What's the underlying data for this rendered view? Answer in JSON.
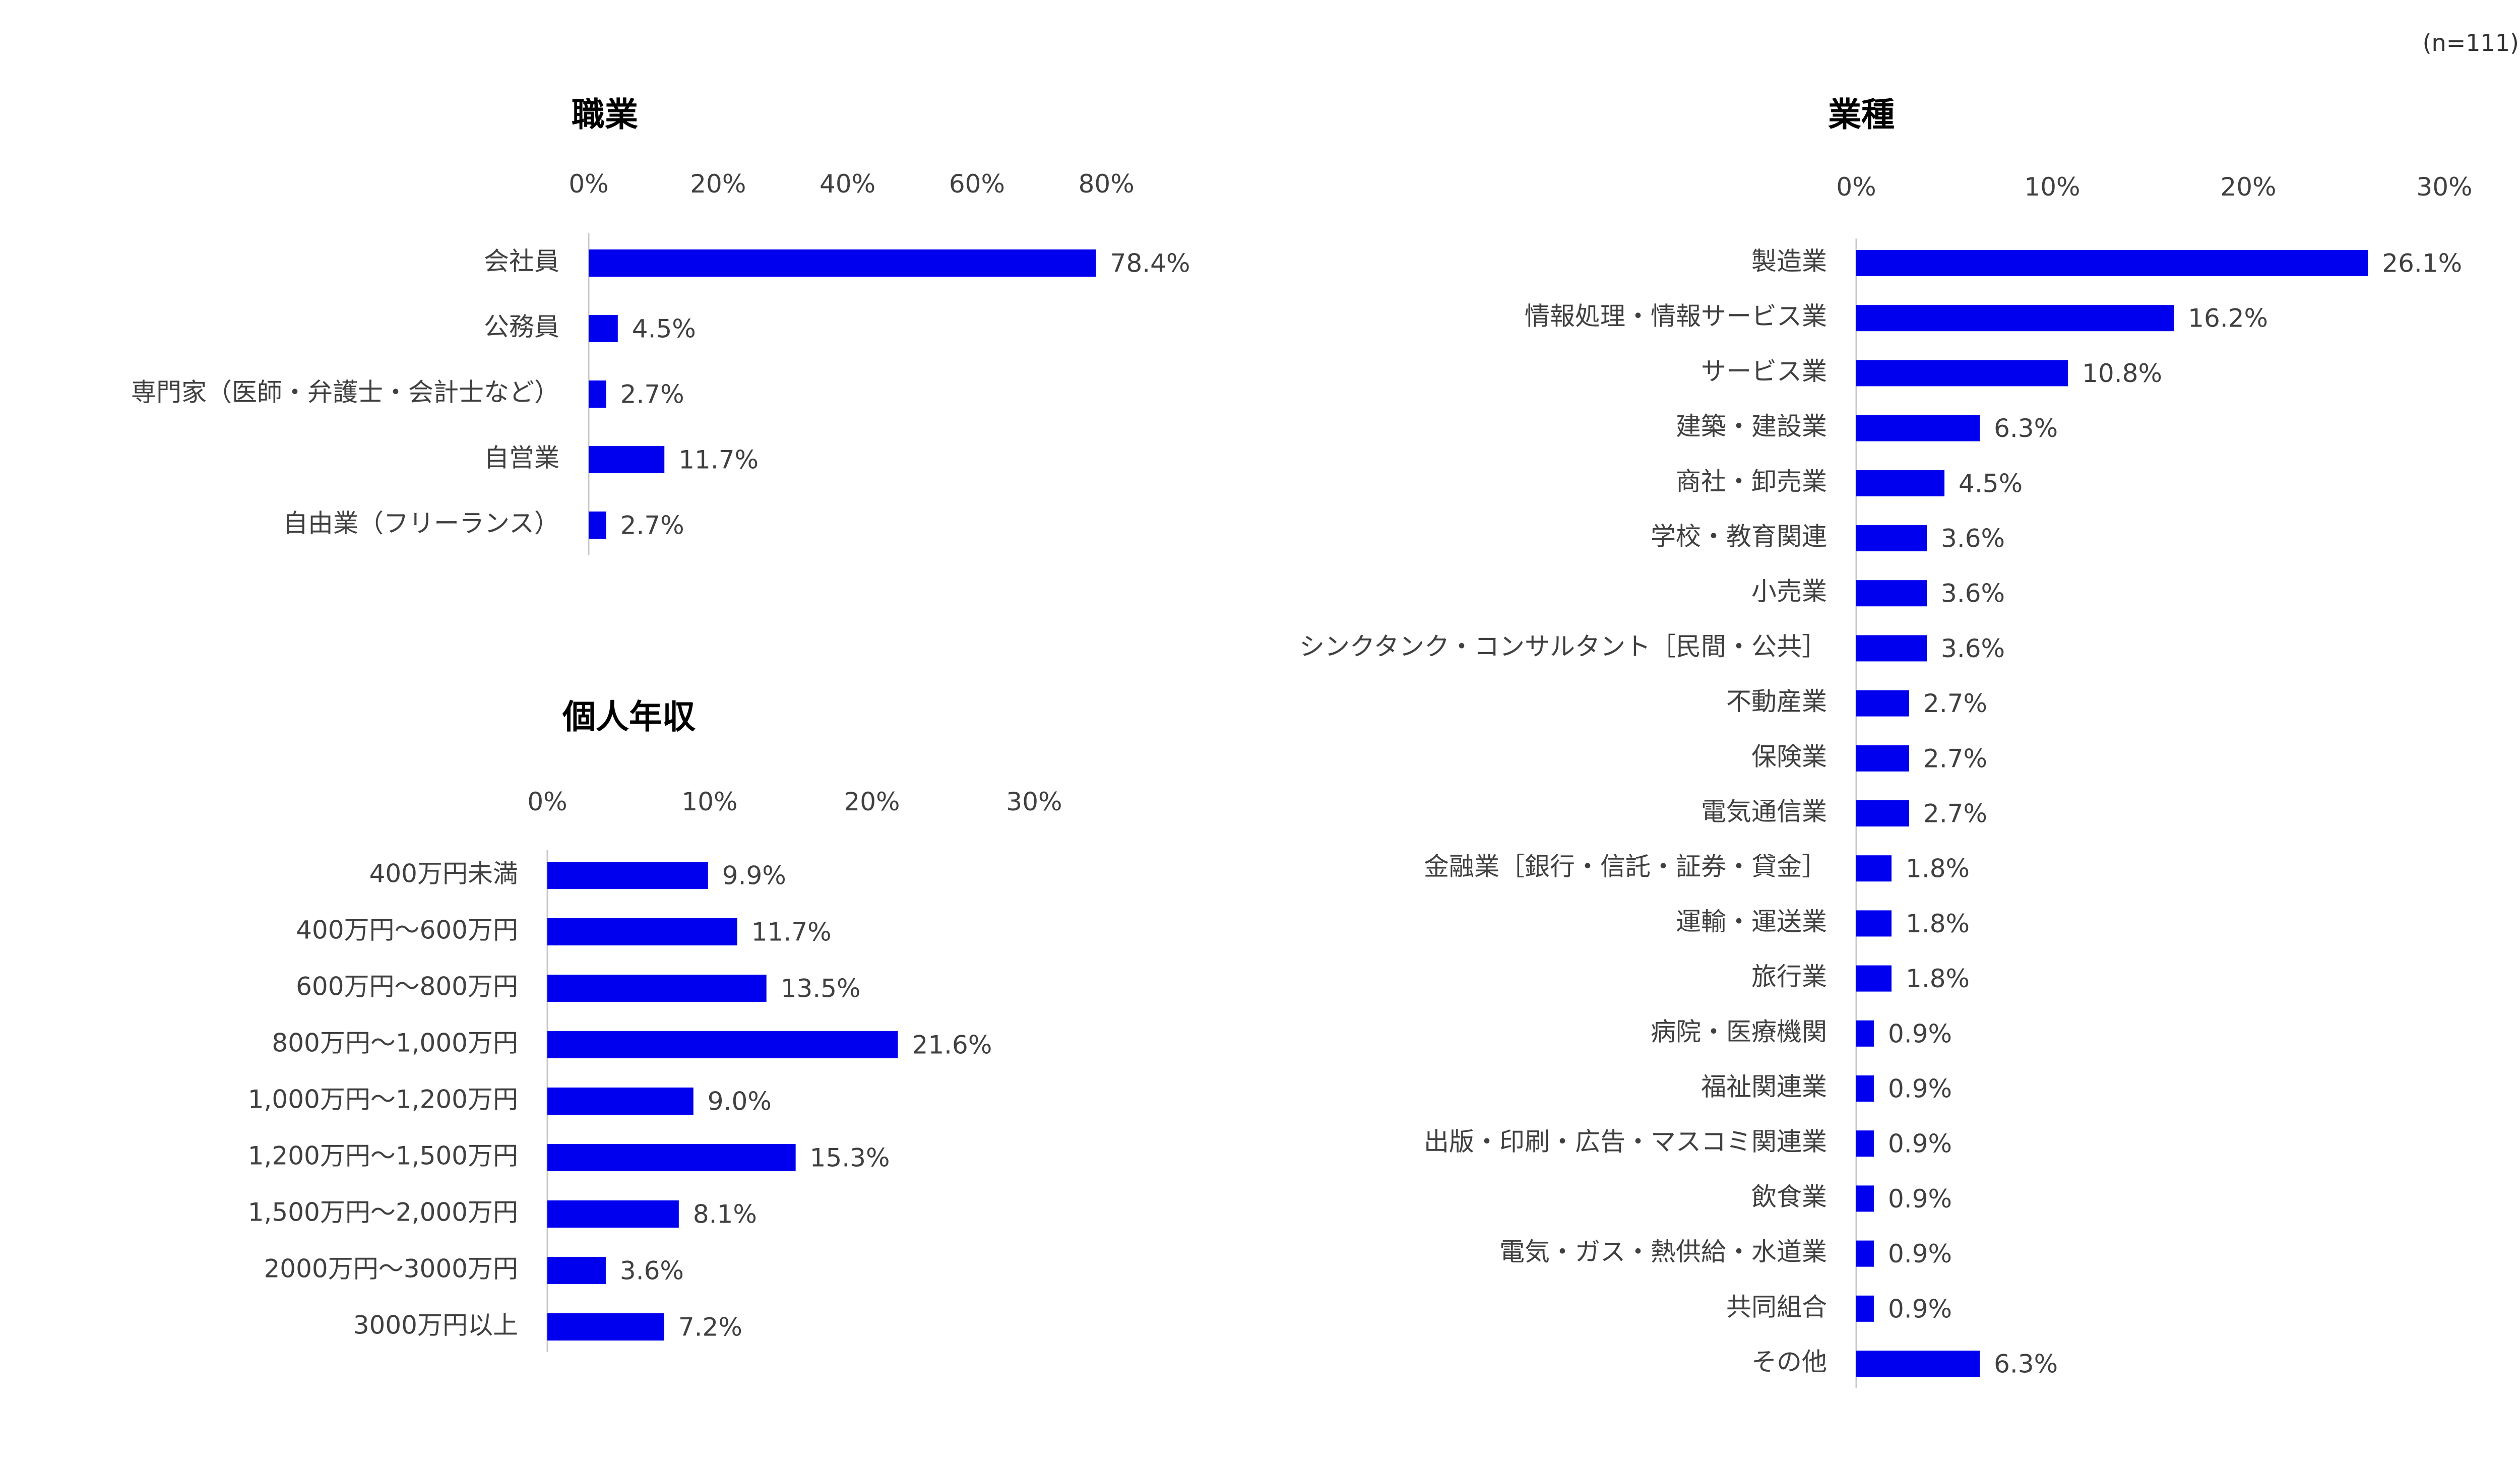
{
  "sample_size": "(n=111)",
  "colors": {
    "bar": "#0000ee"
  },
  "chart_data": [
    {
      "type": "bar",
      "orientation": "horizontal",
      "title": "職業",
      "ticks": [
        "0%",
        "20%",
        "40%",
        "60%",
        "80%"
      ],
      "xlim": [
        0,
        80
      ],
      "categories": [
        "会社員",
        "公務員",
        "専門家（医師・弁護士・会計士など）",
        "自営業",
        "自由業（フリーランス）"
      ],
      "values": [
        78.4,
        4.5,
        2.7,
        11.7,
        2.7
      ],
      "labels": [
        "78.4%",
        "4.5%",
        "2.7%",
        "11.7%",
        "2.7%"
      ]
    },
    {
      "type": "bar",
      "orientation": "horizontal",
      "title": "個人年収",
      "ticks": [
        "0%",
        "10%",
        "20%",
        "30%"
      ],
      "xlim": [
        0,
        30
      ],
      "categories": [
        "400万円未満",
        "400万円～600万円",
        "600万円～800万円",
        "800万円～1,000万円",
        "1,000万円～1,200万円",
        "1,200万円～1,500万円",
        "1,500万円～2,000万円",
        "2000万円～3000万円",
        "3000万円以上"
      ],
      "values": [
        9.9,
        11.7,
        13.5,
        21.6,
        9.0,
        15.3,
        8.1,
        3.6,
        7.2
      ],
      "labels": [
        "9.9%",
        "11.7%",
        "13.5%",
        "21.6%",
        "9.0%",
        "15.3%",
        "8.1%",
        "3.6%",
        "7.2%"
      ]
    },
    {
      "type": "bar",
      "orientation": "horizontal",
      "title": "業種",
      "ticks": [
        "0%",
        "10%",
        "20%",
        "30%"
      ],
      "xlim": [
        0,
        30
      ],
      "categories": [
        "製造業",
        "情報処理・情報サービス業",
        "サービス業",
        "建築・建設業",
        "商社・卸売業",
        "学校・教育関連",
        "小売業",
        "シンクタンク・コンサルタント［民間・公共］",
        "不動産業",
        "保険業",
        "電気通信業",
        "金融業［銀行・信託・証券・貸金］",
        "運輸・運送業",
        "旅行業",
        "病院・医療機関",
        "福祉関連業",
        "出版・印刷・広告・マスコミ関連業",
        "飲食業",
        "電気・ガス・熱供給・水道業",
        "共同組合",
        "その他"
      ],
      "values": [
        26.1,
        16.2,
        10.8,
        6.3,
        4.5,
        3.6,
        3.6,
        3.6,
        2.7,
        2.7,
        2.7,
        1.8,
        1.8,
        1.8,
        0.9,
        0.9,
        0.9,
        0.9,
        0.9,
        0.9,
        6.3
      ],
      "labels": [
        "26.1%",
        "16.2%",
        "10.8%",
        "6.3%",
        "4.5%",
        "3.6%",
        "3.6%",
        "3.6%",
        "2.7%",
        "2.7%",
        "2.7%",
        "1.8%",
        "1.8%",
        "1.8%",
        "0.9%",
        "0.9%",
        "0.9%",
        "0.9%",
        "0.9%",
        "0.9%",
        "6.3%"
      ]
    }
  ]
}
